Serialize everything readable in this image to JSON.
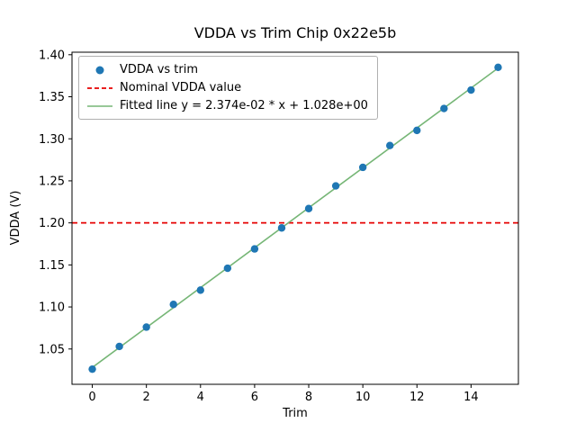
{
  "chart_data": {
    "type": "scatter",
    "title": "VDDA vs Trim Chip 0x22e5b",
    "xlabel": "Trim",
    "ylabel": "VDDA (V)",
    "xlim": [
      -0.75,
      15.75
    ],
    "ylim": [
      1.008,
      1.403
    ],
    "x_ticks": [
      0,
      2,
      4,
      6,
      8,
      10,
      12,
      14
    ],
    "y_ticks": [
      1.05,
      1.1,
      1.15,
      1.2,
      1.25,
      1.3,
      1.35,
      1.4
    ],
    "grid": false,
    "legend_position": "upper-left",
    "series": [
      {
        "name": "VDDA vs trim",
        "type": "scatter",
        "color": "#1f77b4",
        "x": [
          0,
          1,
          2,
          3,
          4,
          5,
          6,
          7,
          8,
          9,
          10,
          11,
          12,
          13,
          14,
          15
        ],
        "y": [
          1.026,
          1.053,
          1.076,
          1.103,
          1.12,
          1.146,
          1.169,
          1.194,
          1.217,
          1.244,
          1.266,
          1.292,
          1.31,
          1.336,
          1.358,
          1.385
        ]
      },
      {
        "name": "Nominal VDDA value",
        "type": "hline",
        "color": "#e60000",
        "y": 1.2,
        "dash": "6,4"
      },
      {
        "name": "Fitted line y = 2.374e-02 * x + 1.028e+00",
        "type": "line",
        "color": "#76b676",
        "slope": 0.02374,
        "intercept": 1.028,
        "x_start": 0,
        "x_end": 15
      }
    ]
  }
}
